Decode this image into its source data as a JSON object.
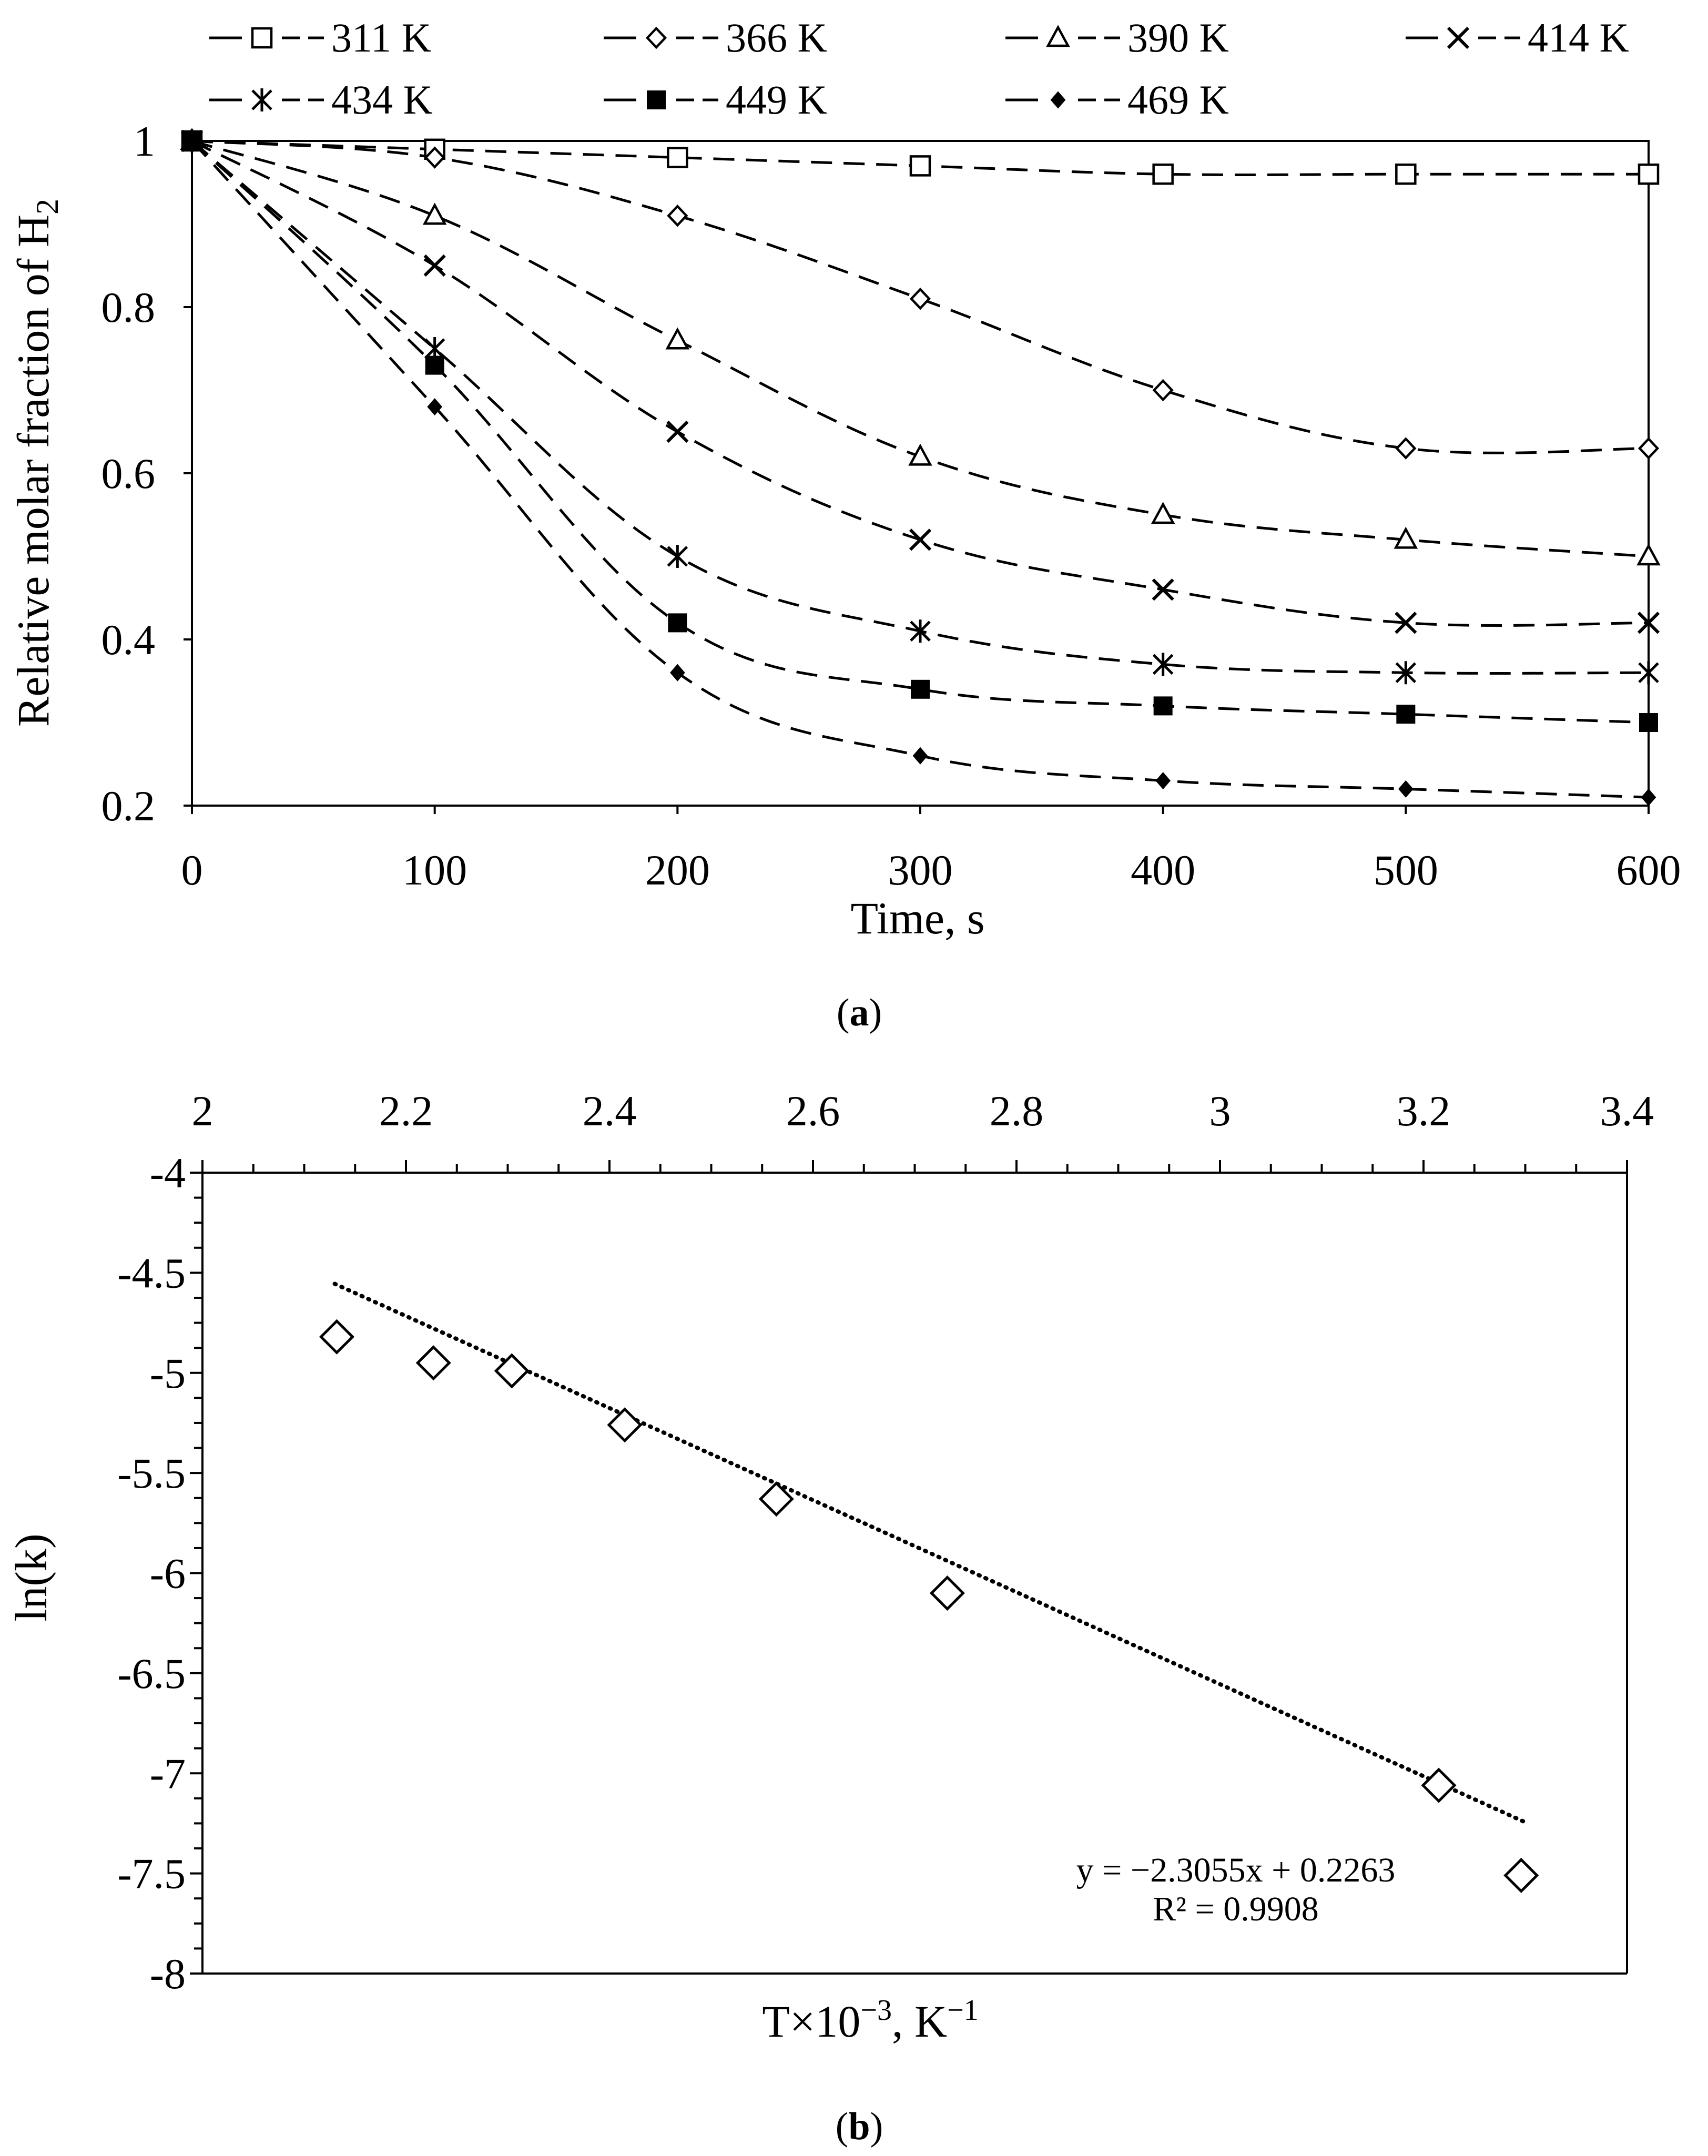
{
  "chart_data": [
    {
      "id": "a",
      "type": "line",
      "caption": "a",
      "xlabel": "Time, s",
      "ylabel": "Relative molar fraction of H",
      "ylabel_subscript": "2",
      "xlim": [
        0,
        600
      ],
      "ylim": [
        0.2,
        1.0
      ],
      "xticks": [
        0,
        100,
        200,
        300,
        400,
        500,
        600
      ],
      "yticks": [
        0.2,
        0.4,
        0.6,
        0.8,
        1.0
      ],
      "ytick_labels": [
        "0.2",
        "0.4",
        "0.6",
        "0.8",
        "1"
      ],
      "x": [
        0,
        100,
        200,
        300,
        400,
        500,
        600
      ],
      "legend_position": "top",
      "series": [
        {
          "name": "311 K",
          "marker": "square-open",
          "values": [
            1.0,
            0.99,
            0.98,
            0.97,
            0.96,
            0.96,
            0.96
          ]
        },
        {
          "name": "366 K",
          "marker": "diamond-open",
          "values": [
            1.0,
            0.98,
            0.91,
            0.81,
            0.7,
            0.63,
            0.63
          ]
        },
        {
          "name": "390 K",
          "marker": "triangle-open",
          "values": [
            1.0,
            0.91,
            0.76,
            0.62,
            0.55,
            0.52,
            0.5
          ]
        },
        {
          "name": "414 K",
          "marker": "x",
          "values": [
            1.0,
            0.85,
            0.65,
            0.52,
            0.46,
            0.42,
            0.42
          ]
        },
        {
          "name": "434 K",
          "marker": "star",
          "values": [
            1.0,
            0.75,
            0.5,
            0.41,
            0.37,
            0.36,
            0.36
          ]
        },
        {
          "name": "449 K",
          "marker": "square-filled",
          "values": [
            1.0,
            0.73,
            0.42,
            0.34,
            0.32,
            0.31,
            0.3
          ]
        },
        {
          "name": "469 K",
          "marker": "diamond-filled",
          "values": [
            1.0,
            0.68,
            0.36,
            0.26,
            0.23,
            0.22,
            0.21
          ]
        }
      ]
    },
    {
      "id": "b",
      "type": "scatter",
      "caption": "b",
      "xlabel": "T×10",
      "xlabel_sup": "−3",
      "xlabel_mid": ", K",
      "xlabel_sup2": "−1",
      "ylabel": "ln(k)",
      "xlim": [
        2.0,
        3.4
      ],
      "ylim": [
        -8.0,
        -4.0
      ],
      "xticks": [
        2.0,
        2.2,
        2.4,
        2.6,
        2.8,
        3.0,
        3.2,
        3.4
      ],
      "xtick_labels": [
        "2",
        "2.2",
        "2.4",
        "2.6",
        "2.8",
        "3",
        "3.2",
        "3.4"
      ],
      "yticks": [
        -4.0,
        -4.5,
        -5.0,
        -5.5,
        -6.0,
        -6.5,
        -7.0,
        -7.5,
        -8.0
      ],
      "ytick_labels": [
        "-4",
        "-4.5",
        "-5",
        "-5.5",
        "-6",
        "-6.5",
        "-7",
        "-7.5",
        "-8"
      ],
      "x_axis_position": "top",
      "points": {
        "x": [
          2.132,
          2.227,
          2.304,
          2.415,
          2.564,
          2.732,
          3.215,
          3.296
        ],
        "y": [
          -4.82,
          -4.95,
          -4.99,
          -5.26,
          -5.63,
          -6.1,
          -7.06,
          -7.51
        ]
      },
      "trendline": {
        "slope": -2.3055,
        "intercept": 0.2263,
        "x_range": [
          2.13,
          3.3
        ]
      },
      "equation": "y = −2.3055x + 0.2263",
      "r_squared": "R² = 0.9908"
    }
  ]
}
